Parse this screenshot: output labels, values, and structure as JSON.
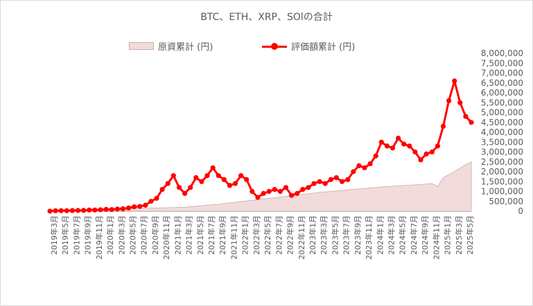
{
  "chart_data": {
    "type": "line",
    "title": "BTC、ETH、XRP、SOlの合計",
    "legend_position": "top",
    "grid": false,
    "ylim": [
      0,
      8000000
    ],
    "yticks": [
      "0",
      "500,000",
      "1,000,000",
      "1,500,000",
      "2,000,000",
      "2,500,000",
      "3,000,000",
      "3,500,000",
      "4,000,000",
      "4,500,000",
      "5,000,000",
      "5,500,000",
      "6,000,000",
      "6,500,000",
      "7,000,000",
      "7,500,000",
      "8,000,000"
    ],
    "xticks": [
      "2019年3月",
      "2019年5月",
      "2019年7月",
      "2019年9月",
      "2019年11月",
      "2020年1月",
      "2020年3月",
      "2020年5月",
      "2020年7月",
      "2020年9月",
      "2020年11月",
      "2021年1月",
      "2021年3月",
      "2021年5月",
      "2021年7月",
      "2021年9月",
      "2021年11月",
      "2022年1月",
      "2022年3月",
      "2022年5月",
      "2022年7月",
      "2022年9月",
      "2022年11月",
      "2023年1月",
      "2023年3月",
      "2023年5月",
      "2023年7月",
      "2023年9月",
      "2023年11月",
      "2024年1月",
      "2024年3月",
      "2024年5月",
      "2024年7月",
      "2024年9月",
      "2024年11月",
      "2025年1月",
      "2025年3月",
      "2025年5月"
    ],
    "series": [
      {
        "name": "原資累計 (円)",
        "kind": "area",
        "color": "#f2dcdb",
        "stroke": "#c9a9a6",
        "x": [
          0,
          6,
          12,
          18,
          24,
          30,
          36,
          42,
          48,
          54,
          60,
          66,
          68,
          69,
          70,
          72,
          74,
          75
        ],
        "values": [
          0,
          50000,
          100000,
          150000,
          200000,
          350000,
          550000,
          750000,
          950000,
          1100000,
          1250000,
          1350000,
          1400000,
          1250000,
          1700000,
          2000000,
          2350000,
          2500000
        ]
      },
      {
        "name": "評価額累計 (円)",
        "kind": "line-markers",
        "color": "#ff0000",
        "x": [
          0,
          1,
          2,
          3,
          4,
          5,
          6,
          7,
          8,
          9,
          10,
          11,
          12,
          13,
          14,
          15,
          16,
          17,
          18,
          19,
          20,
          21,
          22,
          23,
          24,
          25,
          26,
          27,
          28,
          29,
          30,
          31,
          32,
          33,
          34,
          35,
          36,
          37,
          38,
          39,
          40,
          41,
          42,
          43,
          44,
          45,
          46,
          47,
          48,
          49,
          50,
          51,
          52,
          53,
          54,
          55,
          56,
          57,
          58,
          59,
          60,
          61,
          62,
          63,
          64,
          65,
          66,
          67,
          68,
          69,
          70,
          71,
          72,
          73,
          74,
          75
        ],
        "values": [
          0,
          20000,
          25000,
          25000,
          30000,
          35000,
          40000,
          60000,
          60000,
          70000,
          90000,
          80000,
          110000,
          120000,
          160000,
          220000,
          240000,
          300000,
          500000,
          650000,
          1100000,
          1400000,
          1800000,
          1200000,
          900000,
          1200000,
          1700000,
          1500000,
          1800000,
          2200000,
          1800000,
          1600000,
          1300000,
          1400000,
          1800000,
          1600000,
          1000000,
          700000,
          900000,
          1000000,
          1100000,
          1000000,
          1200000,
          800000,
          900000,
          1100000,
          1200000,
          1400000,
          1500000,
          1400000,
          1600000,
          1700000,
          1500000,
          1600000,
          2000000,
          2300000,
          2200000,
          2400000,
          2800000,
          3500000,
          3300000,
          3200000,
          3700000,
          3400000,
          3300000,
          3000000,
          2600000,
          2900000,
          3000000,
          3300000,
          4300000,
          5600000,
          6600000,
          5500000,
          4800000,
          4500000
        ]
      }
    ]
  }
}
